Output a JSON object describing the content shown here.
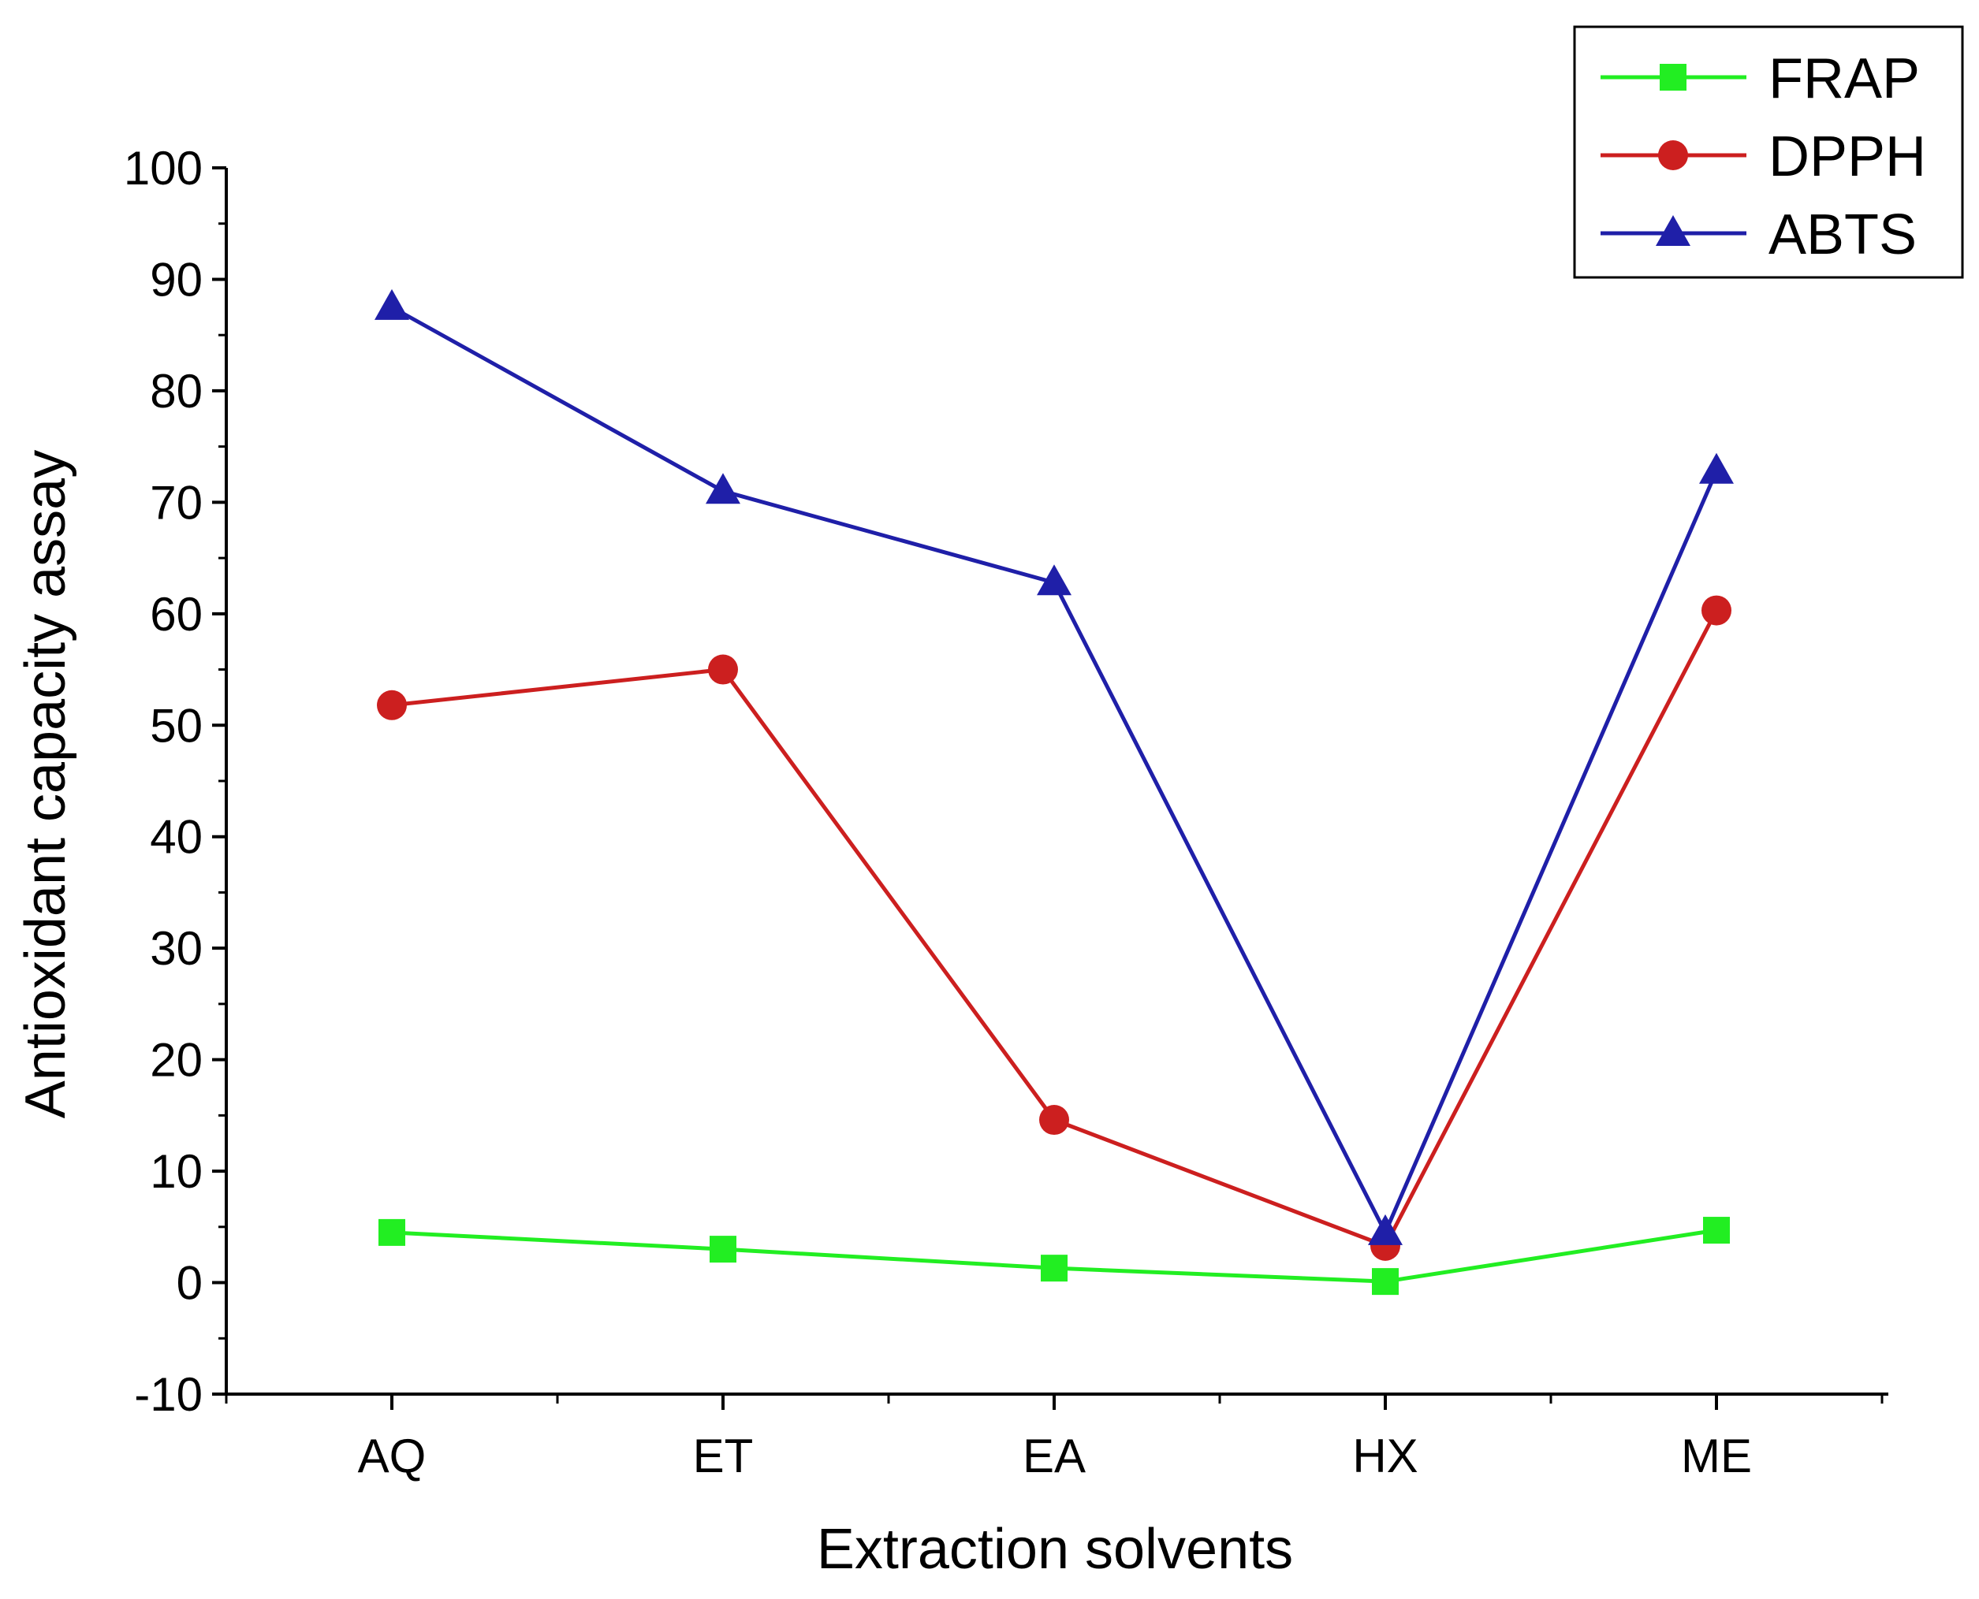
{
  "chart_data": {
    "type": "line",
    "title": "",
    "xlabel": "Extraction solvents",
    "ylabel": "Antioxidant capacity assay",
    "categories": [
      "AQ",
      "ET",
      "EA",
      "HX",
      "ME"
    ],
    "ylim": [
      -10,
      100
    ],
    "yticks": [
      -10,
      0,
      10,
      20,
      30,
      40,
      50,
      60,
      70,
      80,
      90,
      100
    ],
    "legend_position": "top-right",
    "grid": false,
    "series": [
      {
        "name": "FRAP",
        "color": "#22ee22",
        "marker": "square",
        "values": [
          4.5,
          3.0,
          1.3,
          0.1,
          4.7
        ]
      },
      {
        "name": "DPPH",
        "color": "#cc1f1f",
        "marker": "circle",
        "values": [
          51.8,
          55.0,
          14.6,
          3.3,
          60.3
        ]
      },
      {
        "name": "ABTS",
        "color": "#1f1fa8",
        "marker": "triangle",
        "values": [
          87.5,
          71.0,
          62.8,
          4.5,
          72.8
        ]
      }
    ]
  }
}
